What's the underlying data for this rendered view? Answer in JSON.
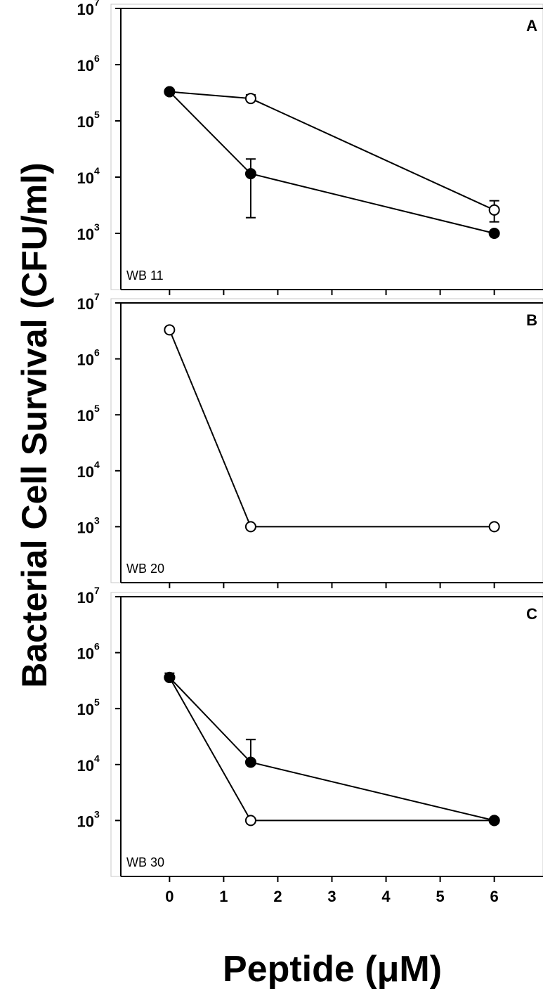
{
  "chart_data": {
    "type": "scatter",
    "ylabel": "Bacterial Cell Survival (CFU/ml)",
    "xlabel": "Peptide (μM)",
    "y_scale": "log",
    "ylim": [
      100,
      10000000
    ],
    "y_tick_labels": [
      {
        "base": "10",
        "exp": "3",
        "value": 1000
      },
      {
        "base": "10",
        "exp": "4",
        "value": 10000
      },
      {
        "base": "10",
        "exp": "5",
        "value": 100000
      },
      {
        "base": "10",
        "exp": "6",
        "value": 1000000
      },
      {
        "base": "10",
        "exp": "7",
        "value": 10000000
      }
    ],
    "xlim": [
      -0.9,
      6.9
    ],
    "x_ticks": [
      0,
      1,
      2,
      3,
      4,
      5,
      6
    ],
    "x_tick_labels": [
      "0",
      "1",
      "2",
      "3",
      "4",
      "5",
      "6"
    ],
    "grid": false,
    "panels": [
      {
        "letter": "A",
        "strain": "WB 11",
        "series": [
          {
            "marker": "open circle",
            "x": [
              0,
              1.5,
              6
            ],
            "y": [
              330000,
              250000,
              2600
            ],
            "err_high": [
              null,
              290000,
              3800
            ],
            "err_low": [
              null,
              null,
              1600
            ]
          },
          {
            "marker": "filled circle",
            "x": [
              0,
              1.5,
              6
            ],
            "y": [
              330000,
              11500,
              1000
            ],
            "err_high": [
              null,
              21000,
              null
            ],
            "err_low": [
              null,
              1900,
              null
            ]
          }
        ]
      },
      {
        "letter": "B",
        "strain": "WB 20",
        "series": [
          {
            "marker": "open circle",
            "x": [
              0,
              1.5,
              6
            ],
            "y": [
              3300000,
              1000,
              1000
            ],
            "err_high": [
              null,
              null,
              null
            ],
            "err_low": [
              null,
              null,
              null
            ]
          }
        ]
      },
      {
        "letter": "C",
        "strain": "WB 30",
        "series": [
          {
            "marker": "open circle",
            "x": [
              0,
              1.5,
              6
            ],
            "y": [
              360000,
              1000,
              1000
            ],
            "err_high": [
              430000,
              null,
              null
            ],
            "err_low": [
              null,
              null,
              null
            ]
          },
          {
            "marker": "filled circle",
            "x": [
              0,
              1.5,
              6
            ],
            "y": [
              360000,
              11000,
              1000
            ],
            "err_high": [
              null,
              28000,
              null
            ],
            "err_low": [
              null,
              null,
              null
            ]
          }
        ]
      }
    ]
  }
}
